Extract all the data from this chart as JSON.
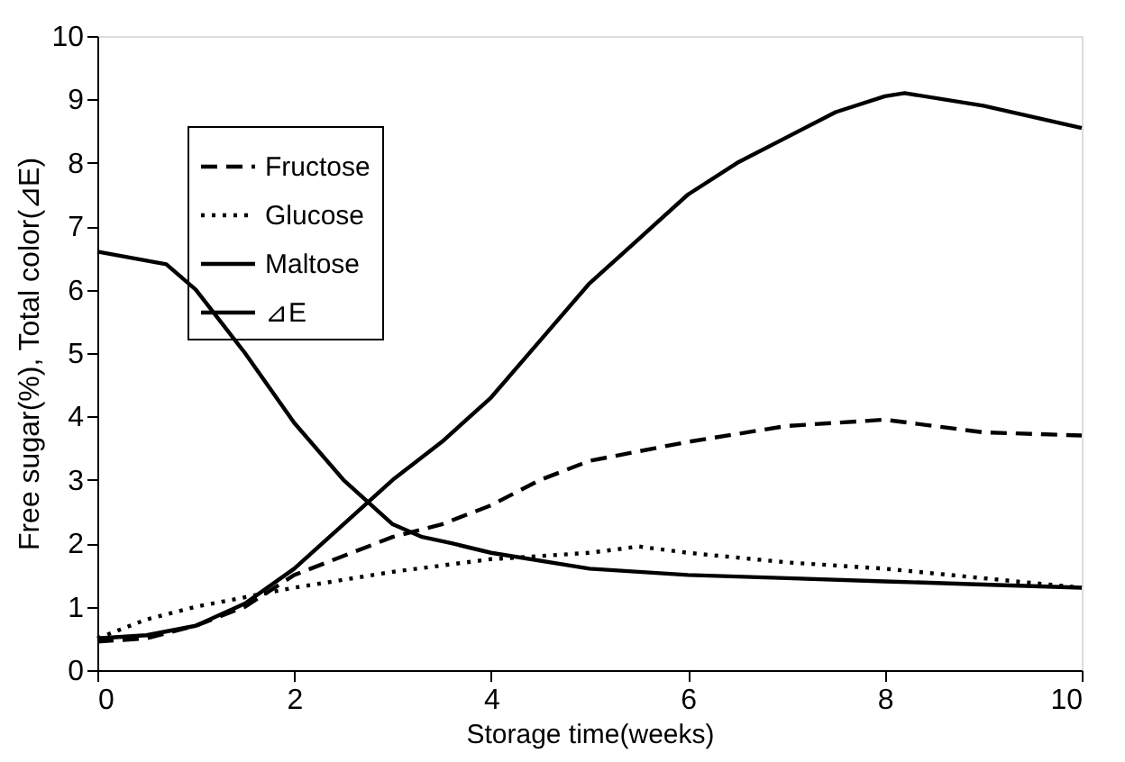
{
  "chart_data": {
    "type": "line",
    "xlabel": "Storage time(weeks)",
    "ylabel": "Free sugar(%), Total color(⊿E)",
    "xlim": [
      0,
      10
    ],
    "xticks": [
      0,
      2,
      4,
      6,
      8,
      10
    ],
    "ylim": [
      0,
      10
    ],
    "yticks": [
      0,
      1,
      2,
      3,
      4,
      5,
      6,
      7,
      8,
      9,
      10
    ],
    "grid": false,
    "legend": "top left",
    "marker": "none",
    "series": [
      {
        "name": "Fructose",
        "color": "#000000",
        "line_style": "dashed",
        "x": [
          0,
          0.5,
          1,
          1.5,
          2,
          2.5,
          3,
          3.5,
          4,
          4.5,
          5,
          5.5,
          6,
          7,
          8,
          8.5,
          9,
          10
        ],
        "values": [
          0.45,
          0.5,
          0.7,
          1.0,
          1.5,
          1.8,
          2.1,
          2.3,
          2.6,
          3.0,
          3.3,
          3.45,
          3.6,
          3.85,
          3.95,
          3.85,
          3.75,
          3.7
        ]
      },
      {
        "name": "Glucose",
        "color": "#000000",
        "line_style": "dotted",
        "x": [
          0,
          0.5,
          1,
          1.5,
          2,
          3,
          4,
          5,
          5.5,
          6,
          7,
          8,
          9,
          10
        ],
        "values": [
          0.5,
          0.8,
          1.0,
          1.15,
          1.3,
          1.55,
          1.75,
          1.85,
          1.95,
          1.85,
          1.7,
          1.6,
          1.45,
          1.3
        ]
      },
      {
        "name": "Maltose",
        "color": "#000000",
        "line_style": "solid",
        "x": [
          0,
          0.7,
          1,
          1.5,
          2,
          2.5,
          3,
          3.3,
          3.6,
          4,
          5,
          6,
          7,
          8,
          9,
          10
        ],
        "values": [
          6.6,
          6.4,
          6.0,
          5.0,
          3.9,
          3.0,
          2.3,
          2.1,
          2.0,
          1.85,
          1.6,
          1.5,
          1.45,
          1.4,
          1.35,
          1.3
        ]
      },
      {
        "name": "⊿E",
        "color": "#000000",
        "line_style": "solid",
        "x": [
          0,
          0.5,
          1,
          1.5,
          2,
          2.5,
          3,
          3.5,
          4,
          4.5,
          5,
          5.5,
          6,
          6.5,
          7,
          7.5,
          8,
          8.2,
          9,
          10
        ],
        "values": [
          0.5,
          0.55,
          0.7,
          1.05,
          1.6,
          2.3,
          3.0,
          3.6,
          4.3,
          5.2,
          6.1,
          6.8,
          7.5,
          8.0,
          8.4,
          8.8,
          9.05,
          9.1,
          8.9,
          8.55
        ]
      }
    ]
  }
}
